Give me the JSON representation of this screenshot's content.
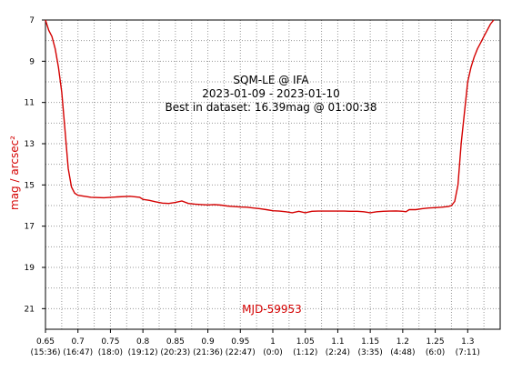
{
  "chart_data": {
    "type": "line",
    "title_lines": [
      "SQM-LE @ IFA",
      "2023-01-09 - 2023-01-10",
      "Best in dataset: 16.39mag @ 01:00:38"
    ],
    "ylabel": "mag / arcsec²",
    "annotation": "MJD-59953",
    "xlim": [
      0.65,
      1.35
    ],
    "ylim": [
      7,
      22
    ],
    "y_inverted": true,
    "grid": true,
    "x_ticks": [
      {
        "value": 0.65,
        "label": "0.65",
        "sublabel": "(15:36)"
      },
      {
        "value": 0.7,
        "label": "0.7",
        "sublabel": "(16:47)"
      },
      {
        "value": 0.75,
        "label": "0.75",
        "sublabel": "(18:0)"
      },
      {
        "value": 0.8,
        "label": "0.8",
        "sublabel": "(19:12)"
      },
      {
        "value": 0.85,
        "label": "0.85",
        "sublabel": "(20:23)"
      },
      {
        "value": 0.9,
        "label": "0.9",
        "sublabel": "(21:36)"
      },
      {
        "value": 0.95,
        "label": "0.95",
        "sublabel": "(22:47)"
      },
      {
        "value": 1.0,
        "label": "1",
        "sublabel": "(0:0)"
      },
      {
        "value": 1.05,
        "label": "1.05",
        "sublabel": "(1:12)"
      },
      {
        "value": 1.1,
        "label": "1.1",
        "sublabel": "(2:24)"
      },
      {
        "value": 1.15,
        "label": "1.15",
        "sublabel": "(3:35)"
      },
      {
        "value": 1.2,
        "label": "1.2",
        "sublabel": "(4:48)"
      },
      {
        "value": 1.25,
        "label": "1.25",
        "sublabel": "(6:0)"
      },
      {
        "value": 1.3,
        "label": "1.3",
        "sublabel": "(7:11)"
      }
    ],
    "y_ticks": [
      {
        "value": 7,
        "label": "7"
      },
      {
        "value": 9,
        "label": "9"
      },
      {
        "value": 11,
        "label": "11"
      },
      {
        "value": 13,
        "label": "13"
      },
      {
        "value": 15,
        "label": "15"
      },
      {
        "value": 17,
        "label": "17"
      },
      {
        "value": 19,
        "label": "19"
      },
      {
        "value": 21,
        "label": "21"
      }
    ],
    "series": [
      {
        "color": "#d40000",
        "points": [
          [
            0.65,
            7.0
          ],
          [
            0.655,
            7.5
          ],
          [
            0.66,
            7.8
          ],
          [
            0.665,
            8.4
          ],
          [
            0.67,
            9.3
          ],
          [
            0.675,
            10.5
          ],
          [
            0.68,
            12.3
          ],
          [
            0.685,
            14.2
          ],
          [
            0.69,
            15.1
          ],
          [
            0.695,
            15.4
          ],
          [
            0.7,
            15.5
          ],
          [
            0.71,
            15.55
          ],
          [
            0.72,
            15.6
          ],
          [
            0.74,
            15.62
          ],
          [
            0.76,
            15.58
          ],
          [
            0.78,
            15.55
          ],
          [
            0.795,
            15.6
          ],
          [
            0.8,
            15.7
          ],
          [
            0.81,
            15.75
          ],
          [
            0.82,
            15.82
          ],
          [
            0.83,
            15.88
          ],
          [
            0.84,
            15.9
          ],
          [
            0.85,
            15.85
          ],
          [
            0.86,
            15.78
          ],
          [
            0.87,
            15.9
          ],
          [
            0.88,
            15.93
          ],
          [
            0.89,
            15.95
          ],
          [
            0.9,
            15.97
          ],
          [
            0.91,
            15.95
          ],
          [
            0.92,
            15.98
          ],
          [
            0.93,
            16.02
          ],
          [
            0.94,
            16.05
          ],
          [
            0.95,
            16.07
          ],
          [
            0.96,
            16.08
          ],
          [
            0.97,
            16.12
          ],
          [
            0.98,
            16.15
          ],
          [
            0.99,
            16.2
          ],
          [
            1.0,
            16.25
          ],
          [
            1.01,
            16.27
          ],
          [
            1.02,
            16.3
          ],
          [
            1.03,
            16.35
          ],
          [
            1.04,
            16.28
          ],
          [
            1.05,
            16.35
          ],
          [
            1.06,
            16.28
          ],
          [
            1.07,
            16.27
          ],
          [
            1.08,
            16.27
          ],
          [
            1.09,
            16.27
          ],
          [
            1.1,
            16.27
          ],
          [
            1.11,
            16.27
          ],
          [
            1.12,
            16.28
          ],
          [
            1.13,
            16.28
          ],
          [
            1.14,
            16.3
          ],
          [
            1.15,
            16.35
          ],
          [
            1.16,
            16.3
          ],
          [
            1.17,
            16.28
          ],
          [
            1.18,
            16.27
          ],
          [
            1.19,
            16.26
          ],
          [
            1.2,
            16.28
          ],
          [
            1.205,
            16.3
          ],
          [
            1.21,
            16.2
          ],
          [
            1.22,
            16.2
          ],
          [
            1.23,
            16.15
          ],
          [
            1.24,
            16.12
          ],
          [
            1.25,
            16.1
          ],
          [
            1.26,
            16.08
          ],
          [
            1.27,
            16.05
          ],
          [
            1.275,
            16.0
          ],
          [
            1.28,
            15.8
          ],
          [
            1.285,
            15.0
          ],
          [
            1.29,
            13.0
          ],
          [
            1.295,
            11.5
          ],
          [
            1.3,
            10.0
          ],
          [
            1.305,
            9.3
          ],
          [
            1.31,
            8.8
          ],
          [
            1.315,
            8.4
          ],
          [
            1.32,
            8.1
          ],
          [
            1.325,
            7.8
          ],
          [
            1.33,
            7.5
          ],
          [
            1.335,
            7.2
          ],
          [
            1.34,
            7.0
          ]
        ]
      }
    ]
  },
  "colors": {
    "series": "#d40000",
    "grid": "#999999",
    "axis": "#000000"
  }
}
